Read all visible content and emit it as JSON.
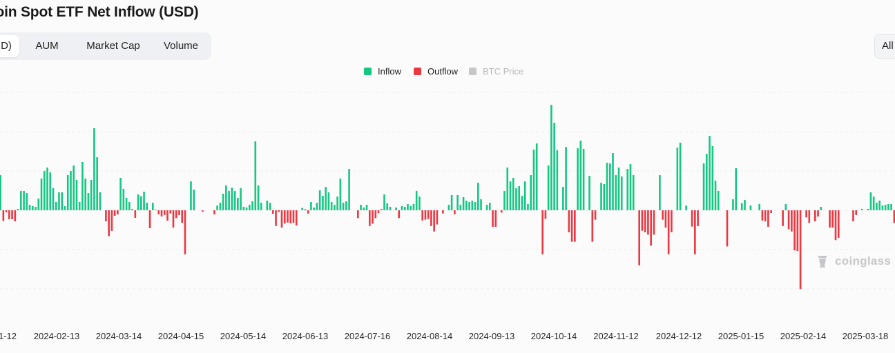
{
  "header": {
    "title": "coin Spot ETF Net Inflow (USD)"
  },
  "tabs": [
    {
      "label": "D)",
      "active": true
    },
    {
      "label": "AUM",
      "active": false
    },
    {
      "label": "Market Cap",
      "active": false
    },
    {
      "label": "Volume",
      "active": false
    }
  ],
  "range_button": {
    "label": "All"
  },
  "watermark": {
    "text": "coinglass"
  },
  "chart_data": {
    "type": "bar",
    "title": "coin Spot ETF Net Inflow (USD)",
    "legend": [
      {
        "name": "Inflow",
        "color": "#16c784",
        "active": true
      },
      {
        "name": "Outflow",
        "color": "#ea3943",
        "active": true
      },
      {
        "name": "BTC Price",
        "color": "#c7c7c7",
        "active": false
      }
    ],
    "x_ticks": [
      "1-12",
      "2024-02-13",
      "2024-03-14",
      "2024-04-15",
      "2024-05-14",
      "2024-06-13",
      "2024-07-16",
      "2024-08-14",
      "2024-09-13",
      "2024-10-14",
      "2024-11-12",
      "2024-12-12",
      "2025-01-15",
      "2025-02-14",
      "2025-03-18"
    ],
    "ylim": [
      -1,
      1.5
    ],
    "grid": true,
    "y_tick_labels_visible": false,
    "series": [
      {
        "values": [
          0.447,
          -0.136,
          -0.026,
          -0.114,
          -0.114,
          -0.141,
          0.018,
          0.246,
          0.246,
          0.219,
          0.07,
          0.053,
          0.044,
          0.149,
          0.404,
          0.5,
          0.544,
          0.482,
          0.281,
          0.105,
          0.228,
          0.228,
          0.053,
          0.447,
          0.5,
          0.57,
          0.386,
          0.105,
          0.614,
          0.404,
          0.219,
          0.386,
          1.044,
          0.675,
          0.228,
          0.0,
          -0.14,
          -0.329,
          -0.263,
          -0.07,
          -0.053,
          0.412,
          0.272,
          0.158,
          0.105,
          0.018,
          -0.096,
          0.202,
          0.18,
          0.237,
          0.096,
          -0.228,
          0.096,
          0.009,
          -0.051,
          -0.078,
          -0.06,
          -0.132,
          -0.04,
          -0.22,
          -0.1,
          -0.06,
          -0.16,
          -0.56,
          0.0,
          0.368,
          0.263,
          0.0,
          0.0,
          -0.017,
          0.0,
          0.0,
          0.0,
          -0.052,
          0.061,
          0.096,
          0.211,
          0.316,
          0.246,
          0.289,
          0.246,
          0.158,
          0.281,
          0.044,
          0.035,
          0.07,
          0.114,
          0.877,
          0.316,
          0.096,
          0.0,
          0.123,
          0.096,
          -0.044,
          -0.2,
          -0.02,
          -0.22,
          -0.168,
          -0.156,
          -0.166,
          -0.16,
          -0.193,
          0.0,
          0.03,
          0.015,
          -0.042,
          0.105,
          0.035,
          0.096,
          0.254,
          0.184,
          0.298,
          0.228,
          0.105,
          0.07,
          0.175,
          0.404,
          0.096,
          0.114,
          0.526,
          0.0,
          0.0,
          -0.1,
          0.07,
          0.035,
          0.07,
          -0.2,
          -0.17,
          -0.1,
          -0.036,
          0.018,
          0.202,
          0.088,
          0.044,
          0.0,
          0.035,
          -0.099,
          0.053,
          0.044,
          0.079,
          0.053,
          0.079,
          0.246,
          0.175,
          -0.13,
          -0.12,
          -0.11,
          -0.2,
          -0.27,
          -0.18,
          0.0,
          -0.04,
          0.0,
          0.07,
          0.193,
          -0.05,
          0.193,
          0.07,
          0.167,
          0.123,
          0.105,
          0.123,
          0.105,
          0.351,
          0.14,
          0.0,
          0.07,
          0.096,
          -0.21,
          -0.21,
          0.0,
          -0.03,
          0.246,
          0.544,
          0.368,
          0.412,
          0.281,
          0.307,
          0.184,
          0.368,
          0.079,
          0.447,
          0.772,
          0.851,
          0.0,
          -0.56,
          -0.11,
          0.57,
          1.342,
          1.114,
          0.763,
          0.0,
          0.298,
          0.807,
          -0.28,
          -0.4,
          -0.4,
          0.789,
          0.886,
          0.781,
          0.0,
          0.439,
          -0.4,
          -0.12,
          0.0,
          0.351,
          0.333,
          0.605,
          0.596,
          0.728,
          0.447,
          0.544,
          0.43,
          0.0,
          0.526,
          0.588,
          0.447,
          0.0,
          -0.7,
          -0.26,
          -0.28,
          -0.31,
          -0.45,
          -0.31,
          0.0,
          0.447,
          -0.12,
          -0.22,
          -0.56,
          -0.28,
          0.0,
          0.798,
          0.86,
          0.0,
          0.061,
          0.0,
          -0.207,
          -0.56,
          -0.202,
          0.0,
          0.596,
          0.719,
          0.947,
          0.816,
          0.377,
          0.246,
          0.0,
          0.0,
          -0.46,
          0.0,
          0.14,
          0.535,
          0.0,
          0.091,
          0.132,
          0.0,
          0.061,
          0.0,
          0.0,
          0.08,
          -0.13,
          -0.14,
          -0.21,
          -0.035,
          0.0,
          0.0,
          0.0,
          -0.2,
          0.079,
          -0.24,
          -0.27,
          -0.51,
          -0.52,
          -1.0,
          0.0,
          -0.09,
          -0.16,
          0.0,
          -0.14,
          -0.08,
          0.044,
          0.0,
          0.0,
          -0.22,
          -0.22,
          -0.38,
          -0.35,
          0.0,
          0.0,
          0.0,
          0.0,
          -0.14,
          -0.06,
          0.0,
          0.018,
          0.0,
          0.018,
          0.228,
          0.175,
          0.096,
          0.123,
          0.061,
          0.07,
          0.079,
          0.079,
          -0.16
        ]
      }
    ]
  }
}
